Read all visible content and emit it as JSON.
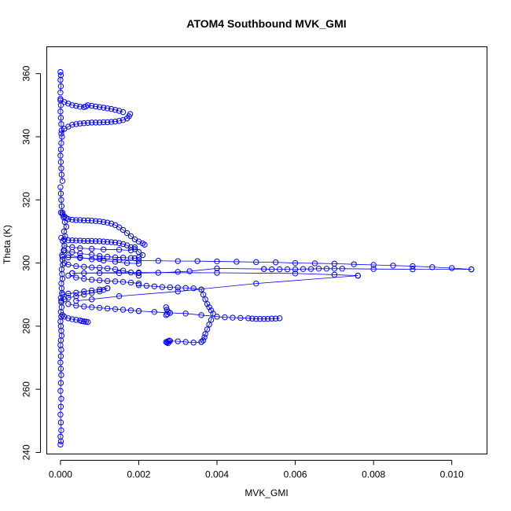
{
  "chart_data": {
    "type": "scatter",
    "title": "ATOM4 Southbound MVK_GMI",
    "xlabel": "MVK_GMI",
    "ylabel": "Theta (K)",
    "xlim": [
      -0.00035,
      0.0109
    ],
    "ylim": [
      239.5,
      368.5
    ],
    "x_ticks": [
      0.0,
      0.002,
      0.004,
      0.006,
      0.008,
      0.01
    ],
    "x_tick_labels": [
      "0.000",
      "0.002",
      "0.004",
      "0.006",
      "0.008",
      "0.010"
    ],
    "y_ticks": [
      240,
      260,
      280,
      300,
      320,
      340,
      360
    ],
    "y_tick_labels": [
      "240",
      "260",
      "280",
      "300",
      "320",
      "340",
      "360"
    ],
    "grid": false,
    "legend": "none",
    "marker": "open-circle",
    "connect_points": true,
    "color": "#0000ff",
    "series": [
      {
        "x": [
          0.0,
          1e-05,
          0.0,
          2e-05,
          1e-05,
          0.0,
          1e-05,
          2e-05,
          0.0,
          1e-05,
          2e-05,
          1e-05,
          0.0,
          1e-05,
          2e-05,
          0.0,
          1e-05,
          3e-05,
          2e-05,
          1e-05,
          0.0,
          2e-05,
          1e-05,
          3e-05,
          2e-05,
          1e-05,
          4e-05,
          3e-05,
          2e-05,
          5e-05,
          4e-05,
          3e-05,
          6e-05,
          5e-05,
          4e-05,
          8e-05,
          0.0001,
          6e-05,
          0.00012,
          9e-05,
          0.00015,
          0.00011,
          8e-05,
          5e-05,
          3e-05,
          2e-05,
          1e-05,
          0.0
        ],
        "y": [
          242.5,
          243.5,
          245.0,
          247.0,
          249.5,
          252.0,
          254.5,
          257.0,
          259.5,
          262.0,
          264.5,
          266.5,
          268.5,
          270.5,
          272.5,
          274.0,
          275.5,
          277.0,
          278.5,
          280.0,
          281.5,
          283.0,
          284.5,
          286.0,
          287.5,
          289.0,
          290.5,
          292.0,
          293.5,
          295.0,
          296.5,
          298.0,
          299.5,
          301.0,
          302.5,
          304.0,
          305.5,
          307.0,
          308.5,
          310.0,
          311.5,
          313.0,
          314.5,
          316.0,
          318.0,
          320.0,
          322.0,
          324.0
        ]
      },
      {
        "x": [
          5e-05,
          3e-05,
          2e-05,
          1e-05,
          0.0,
          1e-05,
          2e-05,
          4e-05,
          3e-05,
          2e-05,
          1e-05,
          0.0,
          1e-05,
          0.0
        ],
        "y": [
          326.0,
          328.0,
          330.0,
          332.0,
          334.0,
          336.0,
          338.0,
          340.0,
          342.0,
          344.0,
          346.0,
          348.0,
          350.0,
          352.0
        ]
      },
      {
        "x": [
          0.0,
          1e-05,
          0.0,
          1e-05,
          0.0
        ],
        "y": [
          354.0,
          356.0,
          358.0,
          359.5,
          360.5
        ]
      },
      {
        "x": [
          2e-05,
          0.0001,
          0.0002,
          0.0003,
          0.0004,
          0.0005,
          0.0006,
          0.0007,
          0.0008,
          0.0009,
          0.001,
          0.0011,
          0.0012,
          0.0013,
          0.0014,
          0.0015,
          0.0016,
          0.0017,
          0.00175,
          0.00178
        ],
        "y": [
          341.0,
          342.5,
          343.2,
          343.8,
          344.0,
          344.2,
          344.3,
          344.4,
          344.5,
          344.5,
          344.5,
          344.6,
          344.6,
          344.7,
          344.8,
          345.0,
          345.3,
          345.8,
          346.5,
          347.2
        ]
      },
      {
        "x": [
          0.0,
          0.0001,
          0.0002,
          0.0003,
          0.0004,
          0.0005,
          0.0006,
          0.00065,
          0.0007,
          0.0008,
          0.0009,
          0.001,
          0.0011,
          0.0012,
          0.0013,
          0.0014,
          0.0015,
          0.0016
        ],
        "y": [
          351.5,
          351.0,
          350.5,
          350.0,
          349.8,
          349.5,
          349.4,
          349.6,
          350.0,
          349.8,
          349.6,
          349.4,
          349.2,
          349.0,
          348.8,
          348.5,
          348.2,
          347.8
        ]
      },
      {
        "x": [
          1e-05,
          5e-05,
          0.0001,
          0.00015,
          0.0002,
          0.0003,
          0.0004,
          0.0005,
          0.0006,
          0.0007,
          0.0008,
          0.0009,
          0.001,
          0.0011,
          0.0012,
          0.0013,
          0.0014,
          0.0015,
          0.0016,
          0.0017,
          0.0018,
          0.0019,
          0.002,
          0.0021,
          0.00215
        ],
        "y": [
          316.0,
          315.5,
          314.8,
          314.2,
          313.9,
          313.7,
          313.6,
          313.6,
          313.5,
          313.5,
          313.4,
          313.3,
          313.2,
          313.0,
          312.8,
          312.5,
          312.0,
          311.3,
          310.5,
          309.5,
          308.5,
          307.5,
          306.8,
          306.2,
          305.8
        ]
      },
      {
        "x": [
          2e-05,
          0.0001,
          0.0002,
          0.0003,
          0.0004,
          0.0005,
          0.0006,
          0.0007,
          0.0008,
          0.0009,
          0.001,
          0.0011,
          0.0012,
          0.0013,
          0.0014,
          0.0015,
          0.0016,
          0.0017,
          0.0018,
          0.0019
        ],
        "y": [
          308.0,
          307.5,
          307.2,
          307.2,
          307.1,
          307.1,
          307.0,
          307.0,
          307.0,
          306.9,
          306.9,
          306.8,
          306.7,
          306.6,
          306.5,
          306.3,
          306.0,
          305.6,
          305.0,
          304.4
        ]
      },
      {
        "x": [
          5e-05,
          0.0002,
          0.0005,
          0.001,
          0.0015,
          0.002,
          0.0025,
          0.003,
          0.0035,
          0.004,
          0.0045,
          0.005,
          0.0055,
          0.006,
          0.0065,
          0.007,
          0.0075,
          0.008,
          0.0085,
          0.009,
          0.0095,
          0.01,
          0.0105
        ],
        "y": [
          302.0,
          301.8,
          301.6,
          301.3,
          301.0,
          300.8,
          300.7,
          300.6,
          300.6,
          300.5,
          300.4,
          300.3,
          300.2,
          300.0,
          299.9,
          299.8,
          299.6,
          299.4,
          299.2,
          299.0,
          298.7,
          298.4,
          298.0
        ]
      },
      {
        "x": [
          0.0105,
          0.009,
          0.008,
          0.0072,
          0.007,
          0.0068,
          0.0066,
          0.0064,
          0.0062,
          0.006,
          0.0058,
          0.0056,
          0.0054,
          0.0052
        ],
        "y": [
          298.0,
          298.0,
          298.1,
          298.2,
          298.2,
          298.2,
          298.2,
          298.1,
          298.1,
          298.0,
          298.0,
          298.0,
          298.0,
          298.1
        ]
      },
      {
        "x": [
          0.0052,
          0.004,
          0.0033,
          0.003,
          0.0025,
          0.002,
          0.0015,
          0.001,
          0.0006,
          0.0003
        ],
        "y": [
          298.1,
          298.3,
          297.4,
          297.2,
          296.9,
          296.8,
          296.8,
          296.8,
          296.8,
          296.8
        ]
      },
      {
        "x": [
          0.0003,
          0.002,
          0.004,
          0.006,
          0.007,
          0.0076
        ],
        "y": [
          296.8,
          297.0,
          296.9,
          296.7,
          296.3,
          296.0
        ]
      },
      {
        "x": [
          0.0076,
          0.005,
          0.003,
          0.0015,
          0.0008,
          0.0004
        ],
        "y": [
          296.0,
          293.5,
          291.0,
          289.5,
          288.5,
          288.0
        ]
      },
      {
        "x": [
          0.0001,
          0.0003,
          0.0005,
          0.0008,
          0.001,
          0.0012,
          0.0014,
          0.0016,
          0.0018,
          0.0019,
          0.002,
          0.0021,
          0.002,
          0.0019
        ],
        "y": [
          304.0,
          303.5,
          303.0,
          302.6,
          302.2,
          302.0,
          301.8,
          301.7,
          301.6,
          301.5,
          301.8,
          302.5,
          303.5,
          305.0
        ]
      },
      {
        "x": [
          0.0001,
          0.0002,
          0.0004,
          0.0006,
          0.0008,
          0.001,
          0.0012,
          0.0014,
          0.0016,
          0.0018,
          0.002
        ],
        "y": [
          300.0,
          299.5,
          299.0,
          298.8,
          298.6,
          298.5,
          298.3,
          298.0,
          297.6,
          297.0,
          296.0
        ]
      },
      {
        "x": [
          0.0002,
          0.0004,
          0.0006,
          0.0008,
          0.001,
          0.0012,
          0.0014,
          0.0016,
          0.0018,
          0.002
        ],
        "y": [
          296.0,
          295.4,
          295.0,
          294.7,
          294.5,
          294.3,
          294.2,
          294.0,
          293.8,
          293.5
        ]
      },
      {
        "x": [
          0.002,
          0.0022,
          0.0024,
          0.0026,
          0.0028,
          0.003,
          0.0032,
          0.0034,
          0.0036
        ],
        "y": [
          293.0,
          292.8,
          292.6,
          292.4,
          292.3,
          292.2,
          292.1,
          292.0,
          291.6
        ]
      },
      {
        "x": [
          0.0036,
          0.00365,
          0.0037,
          0.00375,
          0.0038,
          0.00385,
          0.0039,
          0.00385,
          0.0038,
          0.00375,
          0.0037,
          0.00368,
          0.00365,
          0.0036
        ],
        "y": [
          291.6,
          290.0,
          288.5,
          287.0,
          286.0,
          285.0,
          284.0,
          282.0,
          280.5,
          279.0,
          277.5,
          276.5,
          275.5,
          275.0
        ]
      },
      {
        "x": [
          0.0036,
          0.0034,
          0.0032,
          0.003,
          0.0028,
          0.00275,
          0.0027,
          0.00272,
          0.00275,
          0.00278
        ],
        "y": [
          275.0,
          274.8,
          275.0,
          275.2,
          275.3,
          275.2,
          275.0,
          274.8,
          274.6,
          275.4
        ]
      },
      {
        "x": [
          0.0002,
          0.0004,
          0.0006,
          0.0008,
          0.001,
          0.0012,
          0.0014,
          0.0016,
          0.0018,
          0.002
        ],
        "y": [
          287.0,
          286.5,
          286.2,
          286.0,
          285.8,
          285.6,
          285.4,
          285.2,
          285.0,
          284.8
        ]
      },
      {
        "x": [
          0.002,
          0.0024,
          0.0028,
          0.0032,
          0.0036,
          0.004,
          0.0042,
          0.0044,
          0.0046,
          0.0048,
          0.0049,
          0.005,
          0.0051,
          0.0052,
          0.0053,
          0.0054,
          0.0055,
          0.0056
        ],
        "y": [
          284.8,
          284.5,
          284.2,
          284.0,
          283.5,
          283.0,
          282.8,
          282.7,
          282.6,
          282.5,
          282.4,
          282.3,
          282.3,
          282.3,
          282.3,
          282.4,
          282.4,
          282.5
        ]
      },
      {
        "x": [
          0.0027,
          0.00272,
          0.00275,
          0.00273,
          0.0027
        ],
        "y": [
          286.0,
          285.2,
          284.5,
          283.8,
          283.5
        ]
      },
      {
        "x": [
          5e-05,
          0.0001,
          0.0002,
          0.0003,
          0.0004,
          0.0005,
          0.00055,
          0.0006,
          0.00065,
          0.0007
        ],
        "y": [
          283.5,
          283.0,
          282.5,
          282.2,
          282.0,
          281.8,
          281.6,
          281.5,
          281.4,
          281.3
        ]
      },
      {
        "x": [
          2e-05,
          0.0001,
          0.0002,
          0.0004,
          0.0006,
          0.0008,
          0.001,
          0.0011,
          0.0012
        ],
        "y": [
          288.0,
          288.5,
          289.0,
          289.5,
          290.0,
          290.5,
          291.0,
          291.5,
          292.0
        ]
      },
      {
        "x": [
          5e-05,
          0.0002,
          0.0004,
          0.0006,
          0.0008,
          0.001,
          0.0012
        ],
        "y": [
          290.0,
          290.3,
          290.6,
          291.0,
          291.3,
          291.6,
          292.0
        ]
      },
      {
        "x": [
          0.0001,
          0.0003,
          0.0005,
          0.0008,
          0.0011,
          0.0015,
          0.0018
        ],
        "y": [
          305.5,
          305.0,
          304.7,
          304.5,
          304.3,
          304.2,
          304.0
        ]
      },
      {
        "x": [
          0.0002,
          0.0005,
          0.0008,
          0.0011,
          0.0014,
          0.0017,
          0.002
        ],
        "y": [
          302.5,
          301.8,
          301.2,
          300.8,
          300.4,
          300.0,
          299.8
        ]
      }
    ]
  }
}
